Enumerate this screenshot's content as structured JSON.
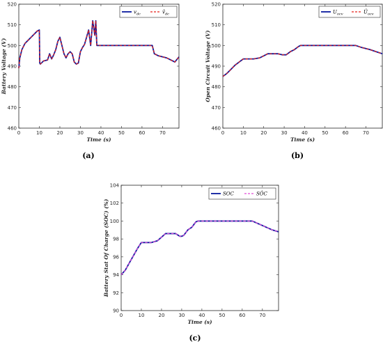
{
  "figures": [
    {
      "caption": "(a)"
    },
    {
      "caption": "(b)"
    },
    {
      "caption": "(c)"
    }
  ],
  "colors": {
    "actual": "#0a1a9e",
    "estimate_a": "#e8201a",
    "estimate_c": "#e24ad8",
    "axis": "#262626"
  },
  "chart_data": [
    {
      "type": "line",
      "xlabel": "Time (s)",
      "ylabel": "Battery Voltage (V)",
      "xlim": [
        0,
        78
      ],
      "ylim": [
        460,
        520
      ],
      "xticks": [
        0,
        10,
        20,
        30,
        40,
        50,
        60,
        70
      ],
      "yticks": [
        460,
        470,
        480,
        490,
        500,
        510,
        520
      ],
      "legend": "top-right",
      "grid": false,
      "series": [
        {
          "name": "v_dc",
          "style": "solid",
          "x": [
            0,
            0.5,
            1.5,
            3,
            5,
            7,
            9,
            10,
            10.2,
            10.5,
            12,
            14,
            15,
            16,
            17,
            18,
            19,
            20,
            21,
            22,
            23,
            24,
            25,
            26,
            27,
            28,
            29,
            30,
            31,
            32,
            33,
            34,
            35,
            36,
            37,
            37.5,
            38,
            40,
            50,
            60,
            65,
            66,
            68,
            70,
            72,
            74,
            76,
            78
          ],
          "y": [
            489,
            494,
            498,
            501,
            503,
            505,
            507,
            507.5,
            491.5,
            491,
            492.5,
            493,
            496,
            493.5,
            495.5,
            498,
            502,
            504,
            500,
            496,
            494,
            496,
            497,
            496,
            492,
            491,
            491.5,
            497,
            499,
            500.5,
            504,
            507.5,
            500,
            512,
            505,
            512,
            500,
            500,
            500,
            500,
            500,
            496,
            495,
            494.5,
            494,
            493,
            492,
            494.5
          ]
        },
        {
          "name": "v̂_dc",
          "style": "dashed",
          "x": [
            0,
            0.5,
            1.5,
            3,
            5,
            7,
            9,
            10,
            10.2,
            10.5,
            12,
            14,
            15,
            16,
            17,
            18,
            19,
            20,
            21,
            22,
            23,
            24,
            25,
            26,
            27,
            28,
            29,
            30,
            31,
            32,
            33,
            34,
            35,
            36,
            37,
            37.5,
            38,
            40,
            50,
            60,
            65,
            66,
            68,
            70,
            72,
            74,
            76,
            78
          ],
          "y": [
            489,
            494,
            498,
            501,
            503,
            505,
            507,
            507.5,
            491.5,
            491,
            492.5,
            493,
            496,
            493.5,
            495.5,
            498,
            502,
            504,
            500,
            496,
            494,
            496,
            497,
            496,
            492,
            491,
            491.5,
            497,
            499,
            500.5,
            504,
            507.5,
            500,
            512,
            505,
            512,
            500,
            500,
            500,
            500,
            500,
            496,
            495,
            494.5,
            494,
            493,
            492,
            494.5
          ]
        }
      ]
    },
    {
      "type": "line",
      "xlabel": "Time (s)",
      "ylabel": "Open Circuit Voltage (V)",
      "xlim": [
        0,
        78
      ],
      "ylim": [
        460,
        520
      ],
      "xticks": [
        0,
        10,
        20,
        30,
        40,
        50,
        60,
        70
      ],
      "yticks": [
        460,
        470,
        480,
        490,
        500,
        510,
        520
      ],
      "legend": "top-right",
      "grid": false,
      "series": [
        {
          "name": "U_ocv",
          "style": "solid",
          "x": [
            0,
            2,
            4,
            6,
            8,
            10,
            12,
            15,
            18,
            20,
            22,
            24,
            27,
            29,
            30,
            31,
            33,
            35,
            37,
            38,
            45,
            55,
            65,
            68,
            72,
            75,
            78
          ],
          "y": [
            485,
            486.5,
            488.5,
            490.5,
            492,
            493.5,
            493.5,
            493.5,
            494,
            495,
            496,
            496,
            496,
            495.5,
            495.5,
            495.5,
            497,
            498,
            499.5,
            500,
            500,
            500,
            500,
            499,
            498,
            497,
            496
          ]
        },
        {
          "name": "Û_ocv",
          "style": "dashed",
          "x": [
            0,
            2,
            4,
            6,
            8,
            10,
            12,
            15,
            18,
            20,
            22,
            24,
            27,
            29,
            30,
            31,
            33,
            35,
            37,
            38,
            45,
            55,
            65,
            68,
            72,
            75,
            78
          ],
          "y": [
            485,
            486.5,
            488.5,
            490.5,
            492,
            493.5,
            493.5,
            493.5,
            494,
            495,
            496,
            496,
            496,
            495.5,
            495.5,
            495.5,
            497,
            498,
            499.5,
            500,
            500,
            500,
            500,
            499,
            498,
            497,
            496
          ]
        }
      ]
    },
    {
      "type": "line",
      "xlabel": "Time (s)",
      "ylabel": "Battery Stat Of Charge (SOC) (%)",
      "xlim": [
        0,
        78
      ],
      "ylim": [
        90,
        104
      ],
      "xticks": [
        0,
        10,
        20,
        30,
        40,
        50,
        60,
        70
      ],
      "yticks": [
        90,
        92,
        94,
        96,
        98,
        100,
        102,
        104
      ],
      "legend": "top-right",
      "grid": false,
      "series": [
        {
          "name": "SOC",
          "style": "solid",
          "x": [
            0,
            2,
            4,
            6,
            8,
            10,
            12,
            15,
            18,
            20,
            22,
            24,
            27,
            29,
            30,
            31,
            33,
            35,
            37,
            38,
            45,
            55,
            65,
            68,
            72,
            75,
            78
          ],
          "y": [
            94,
            94.5,
            95.3,
            96.1,
            96.9,
            97.6,
            97.6,
            97.6,
            97.8,
            98.2,
            98.6,
            98.6,
            98.6,
            98.3,
            98.3,
            98.4,
            99.0,
            99.3,
            99.9,
            100,
            100,
            100,
            100,
            99.7,
            99.3,
            99.0,
            98.8
          ]
        },
        {
          "name": "SÔC",
          "style": "dashed",
          "x": [
            0,
            2,
            4,
            6,
            8,
            10,
            12,
            15,
            18,
            20,
            22,
            24,
            27,
            29,
            30,
            31,
            33,
            35,
            37,
            38,
            45,
            55,
            65,
            68,
            72,
            75,
            78
          ],
          "y": [
            94,
            94.5,
            95.3,
            96.1,
            96.9,
            97.6,
            97.6,
            97.6,
            97.8,
            98.2,
            98.6,
            98.6,
            98.6,
            98.3,
            98.3,
            98.4,
            99.0,
            99.3,
            99.9,
            100,
            100,
            100,
            100,
            99.7,
            99.3,
            99.0,
            98.8
          ]
        }
      ]
    }
  ]
}
